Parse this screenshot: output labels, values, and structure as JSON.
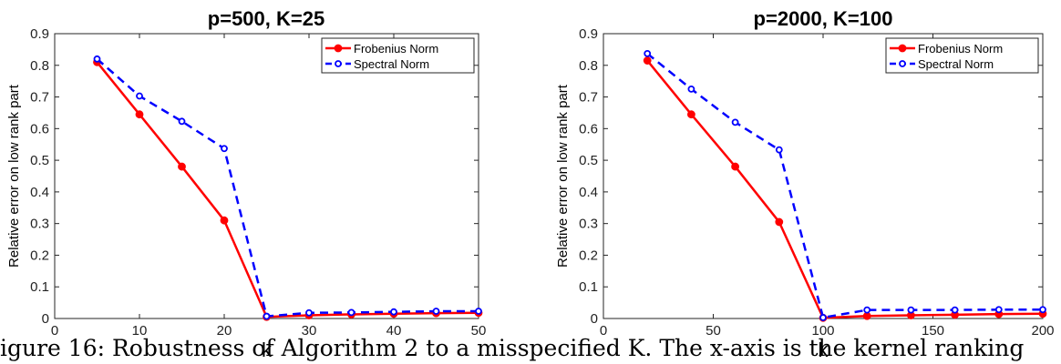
{
  "caption": "igure 16: Robustness of Algorithm 2 to a misspecified K. The x-axis is the kernel ranking",
  "legend_labels": [
    "Frobenius Norm",
    "Spectral Norm"
  ],
  "colors": {
    "frobenius": "#ff0000",
    "spectral": "#0000ff"
  },
  "chart_data": [
    {
      "type": "line",
      "title": "p=500,  K=25",
      "xlabel": "k",
      "ylabel": "Relative error on low rank part",
      "xlim": [
        0,
        50
      ],
      "ylim": [
        0,
        0.9
      ],
      "xticks": [
        0,
        10,
        20,
        30,
        40,
        50
      ],
      "yticks": [
        0,
        0.1,
        0.2,
        0.3,
        0.4,
        0.5,
        0.6,
        0.7,
        0.8,
        0.9
      ],
      "legend": "top-right",
      "grid": false,
      "x": [
        5,
        10,
        15,
        20,
        25,
        30,
        35,
        40,
        45,
        50
      ],
      "series": [
        {
          "name": "Frobenius Norm",
          "style": "solid",
          "marker": "filled-circle",
          "values": [
            0.81,
            0.645,
            0.48,
            0.31,
            0.005,
            0.01,
            0.013,
            0.015,
            0.017,
            0.018
          ]
        },
        {
          "name": "Spectral Norm",
          "style": "dashed",
          "marker": "open-circle",
          "values": [
            0.82,
            0.703,
            0.623,
            0.537,
            0.007,
            0.018,
            0.019,
            0.021,
            0.023,
            0.023
          ]
        }
      ]
    },
    {
      "type": "line",
      "title": "p=2000,  K=100",
      "xlabel": "k",
      "ylabel": "Relative error on low rank part",
      "xlim": [
        0,
        200
      ],
      "ylim": [
        0,
        0.9
      ],
      "xticks": [
        0,
        50,
        100,
        150,
        200
      ],
      "yticks": [
        0,
        0.1,
        0.2,
        0.3,
        0.4,
        0.5,
        0.6,
        0.7,
        0.8,
        0.9
      ],
      "legend": "top-right",
      "grid": false,
      "x": [
        20,
        40,
        60,
        80,
        100,
        120,
        140,
        160,
        180,
        200
      ],
      "series": [
        {
          "name": "Frobenius Norm",
          "style": "solid",
          "marker": "filled-circle",
          "values": [
            0.815,
            0.645,
            0.48,
            0.305,
            0.002,
            0.008,
            0.01,
            0.012,
            0.014,
            0.015
          ]
        },
        {
          "name": "Spectral Norm",
          "style": "dashed",
          "marker": "open-circle",
          "values": [
            0.837,
            0.725,
            0.62,
            0.533,
            0.003,
            0.027,
            0.027,
            0.027,
            0.028,
            0.028
          ]
        }
      ]
    }
  ]
}
